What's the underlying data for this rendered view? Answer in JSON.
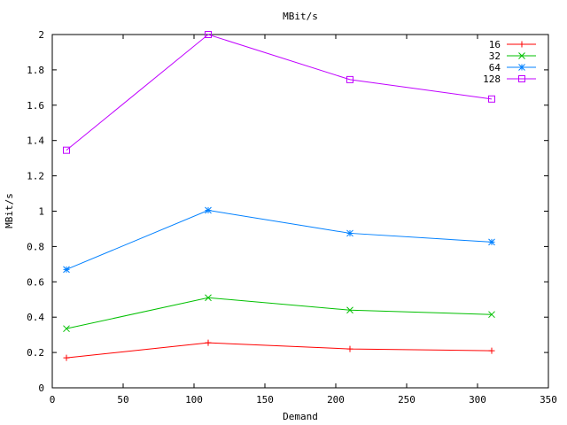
{
  "chart_data": {
    "type": "line",
    "title": "MBit/s",
    "xlabel": "Demand",
    "ylabel": "MBit/s",
    "xlim": [
      0,
      350
    ],
    "ylim": [
      0,
      2
    ],
    "x_ticks": [
      "0",
      "50",
      "100",
      "150",
      "200",
      "250",
      "300",
      "350"
    ],
    "y_ticks": [
      "0",
      "0.2",
      "0.4",
      "0.6",
      "0.8",
      "1",
      "1.2",
      "1.4",
      "1.6",
      "1.8",
      "2"
    ],
    "grid": false,
    "legend_position": "top-right",
    "series": [
      {
        "name": "16",
        "color": "#ff0000",
        "marker": "plus",
        "x": [
          10,
          110,
          210,
          310
        ],
        "y": [
          0.17,
          0.255,
          0.22,
          0.21
        ]
      },
      {
        "name": "32",
        "color": "#00c000",
        "marker": "cross",
        "x": [
          10,
          110,
          210,
          310
        ],
        "y": [
          0.335,
          0.51,
          0.44,
          0.415
        ]
      },
      {
        "name": "64",
        "color": "#0080ff",
        "marker": "star",
        "x": [
          10,
          110,
          210,
          310
        ],
        "y": [
          0.67,
          1.005,
          0.875,
          0.825
        ]
      },
      {
        "name": "128",
        "color": "#c000ff",
        "marker": "square",
        "x": [
          10,
          110,
          210,
          310
        ],
        "y": [
          1.345,
          2.0,
          1.745,
          1.635
        ]
      }
    ]
  }
}
